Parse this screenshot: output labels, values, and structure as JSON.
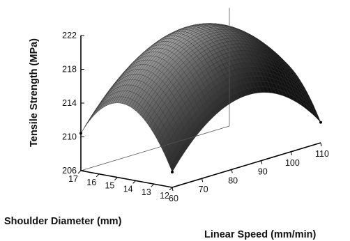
{
  "chart_data": {
    "type": "surface",
    "title": "",
    "z_label": "Tensile Strength (MPa)",
    "x_label": "Linear Speed (mm/min)",
    "y_label": "Shoulder Diameter (mm)",
    "z_ticks": [
      "206",
      "210",
      "214",
      "218",
      "222"
    ],
    "x_ticks": [
      "60",
      "70",
      "80",
      "90",
      "100",
      "110"
    ],
    "y_ticks": [
      "12",
      "13",
      "14",
      "15",
      "16",
      "17"
    ],
    "z_range": [
      206,
      222
    ],
    "x_range": [
      60,
      110
    ],
    "y_range": [
      12,
      17
    ],
    "surface": {
      "form": "quadratic",
      "peak": {
        "linear_speed": 85,
        "shoulder_diameter": 14.5,
        "tensile_strength": 221.2
      },
      "corners": [
        {
          "linear_speed": 60,
          "shoulder_diameter": 12,
          "tensile_strength": 206.3
        },
        {
          "linear_speed": 110,
          "shoulder_diameter": 12,
          "tensile_strength": 208.2
        },
        {
          "linear_speed": 60,
          "shoulder_diameter": 17,
          "tensile_strength": 210.8
        },
        {
          "linear_speed": 110,
          "shoulder_diameter": 17,
          "tensile_strength": 212.4
        }
      ]
    },
    "colormap": "gray",
    "grid": false
  }
}
